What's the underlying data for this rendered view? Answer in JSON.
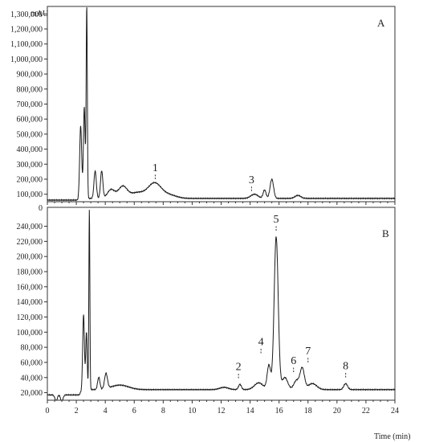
{
  "figure": {
    "ylabel": "mAU",
    "xlabel": "Time (min)",
    "panels": [
      "A",
      "B"
    ]
  },
  "chart_data": [
    {
      "type": "line",
      "panel": "A",
      "ylabel": "mAU",
      "xlim": [
        0,
        24
      ],
      "ylim": [
        50000,
        1350000
      ],
      "yticks": [
        100000,
        200000,
        300000,
        400000,
        500000,
        600000,
        700000,
        800000,
        900000,
        1000000,
        1100000,
        1200000,
        1300000
      ],
      "ytick_labels": [
        "100,000",
        "200,000",
        "300,000",
        "400,000",
        "500,000",
        "600,000",
        "700,000",
        "800,000",
        "900,000",
        "1,000,000",
        "1,100,000",
        "1,200,000",
        "1,300,000"
      ],
      "baseline": 72000,
      "peaks": [
        {
          "x": 2.3,
          "y": 560000,
          "w": 0.07
        },
        {
          "x": 2.55,
          "y": 680000,
          "w": 0.06
        },
        {
          "x": 2.72,
          "y": 1350000,
          "w": 0.04
        },
        {
          "x": 3.3,
          "y": 255000,
          "w": 0.08
        },
        {
          "x": 3.75,
          "y": 255000,
          "w": 0.08
        },
        {
          "x": 4.4,
          "y": 130000,
          "w": 0.25
        },
        {
          "x": 5.2,
          "y": 150000,
          "w": 0.3
        },
        {
          "x": 6.2,
          "y": 110000,
          "w": 0.5
        },
        {
          "x": 7.4,
          "y": 172000,
          "w": 0.45
        },
        {
          "x": 8.4,
          "y": 95000,
          "w": 0.5
        },
        {
          "x": 14.3,
          "y": 100000,
          "w": 0.25
        },
        {
          "x": 15.0,
          "y": 128000,
          "w": 0.1
        },
        {
          "x": 15.5,
          "y": 200000,
          "w": 0.12
        },
        {
          "x": 17.3,
          "y": 92000,
          "w": 0.2
        }
      ],
      "annotations": [
        {
          "text": "1",
          "x": 7.45,
          "y": 190000
        },
        {
          "text": "3",
          "x": 14.1,
          "y": 110000
        }
      ]
    },
    {
      "type": "line",
      "panel": "B",
      "ylabel": "mAU",
      "xlabel": "Time (min)",
      "xlim": [
        0,
        24
      ],
      "ylim": [
        10000,
        265000
      ],
      "xticks": [
        0,
        2,
        4,
        6,
        8,
        10,
        12,
        14,
        16,
        18,
        20,
        22,
        24
      ],
      "yticks": [
        20000,
        40000,
        60000,
        80000,
        100000,
        120000,
        140000,
        160000,
        180000,
        200000,
        220000,
        240000
      ],
      "ytick_labels": [
        "20,000",
        "40,000",
        "60,000",
        "80,000",
        "100,000",
        "120,000",
        "140,000",
        "160,000",
        "180,000",
        "200,000",
        "220,000",
        "240,000"
      ],
      "top_tick_label": "0",
      "baseline": 24000,
      "peaks": [
        {
          "x": 0.6,
          "y": 16000,
          "w": 0.08
        },
        {
          "x": 1.0,
          "y": 15000,
          "w": 0.08
        },
        {
          "x": 2.5,
          "y": 123000,
          "w": 0.06
        },
        {
          "x": 2.7,
          "y": 100000,
          "w": 0.05
        },
        {
          "x": 2.9,
          "y": 262000,
          "w": 0.035
        },
        {
          "x": 3.55,
          "y": 40000,
          "w": 0.08
        },
        {
          "x": 4.05,
          "y": 44000,
          "w": 0.1
        },
        {
          "x": 5.0,
          "y": 30000,
          "w": 0.6
        },
        {
          "x": 12.2,
          "y": 27000,
          "w": 0.3
        },
        {
          "x": 13.3,
          "y": 31000,
          "w": 0.1
        },
        {
          "x": 14.6,
          "y": 33000,
          "w": 0.3
        },
        {
          "x": 15.3,
          "y": 56000,
          "w": 0.12
        },
        {
          "x": 15.8,
          "y": 226000,
          "w": 0.14
        },
        {
          "x": 16.4,
          "y": 40000,
          "w": 0.2
        },
        {
          "x": 17.2,
          "y": 36000,
          "w": 0.18
        },
        {
          "x": 17.6,
          "y": 52000,
          "w": 0.15
        },
        {
          "x": 18.3,
          "y": 32000,
          "w": 0.3
        },
        {
          "x": 20.6,
          "y": 32000,
          "w": 0.13
        }
      ],
      "annotations": [
        {
          "text": "2",
          "x": 13.2,
          "y": 37000
        },
        {
          "text": "4",
          "x": 14.75,
          "y": 70000
        },
        {
          "text": "5",
          "x": 15.8,
          "y": 232000
        },
        {
          "text": "6",
          "x": 17.0,
          "y": 45000
        },
        {
          "text": "7",
          "x": 18.0,
          "y": 58000
        },
        {
          "text": "8",
          "x": 20.6,
          "y": 38000
        }
      ]
    }
  ]
}
